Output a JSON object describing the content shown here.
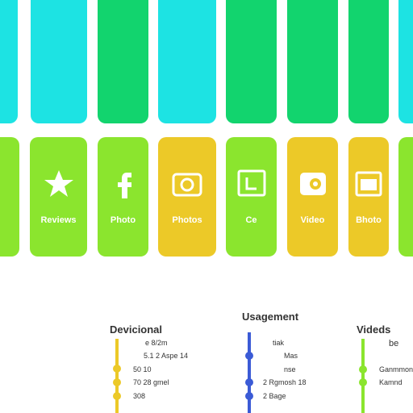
{
  "tiles": [
    {
      "label": "Reviews"
    },
    {
      "label": "Photo"
    },
    {
      "label": "Photos"
    },
    {
      "label": "Ce"
    },
    {
      "label": "Video"
    },
    {
      "label": "Bhoto"
    }
  ],
  "columns": [
    {
      "title": "Devicional",
      "lines": [
        "e   8/2m",
        "5.1 2 Aspe 14",
        "50     10",
        "70 28 gmel",
        "308"
      ]
    },
    {
      "title": "Usagement",
      "lines": [
        "tiak",
        "Mas",
        "nse",
        "2 Rgmosh 18",
        "2 Bage"
      ]
    },
    {
      "title": "Videds",
      "lines": [
        "be",
        "Ganmmonn",
        "Kamnd"
      ]
    }
  ]
}
